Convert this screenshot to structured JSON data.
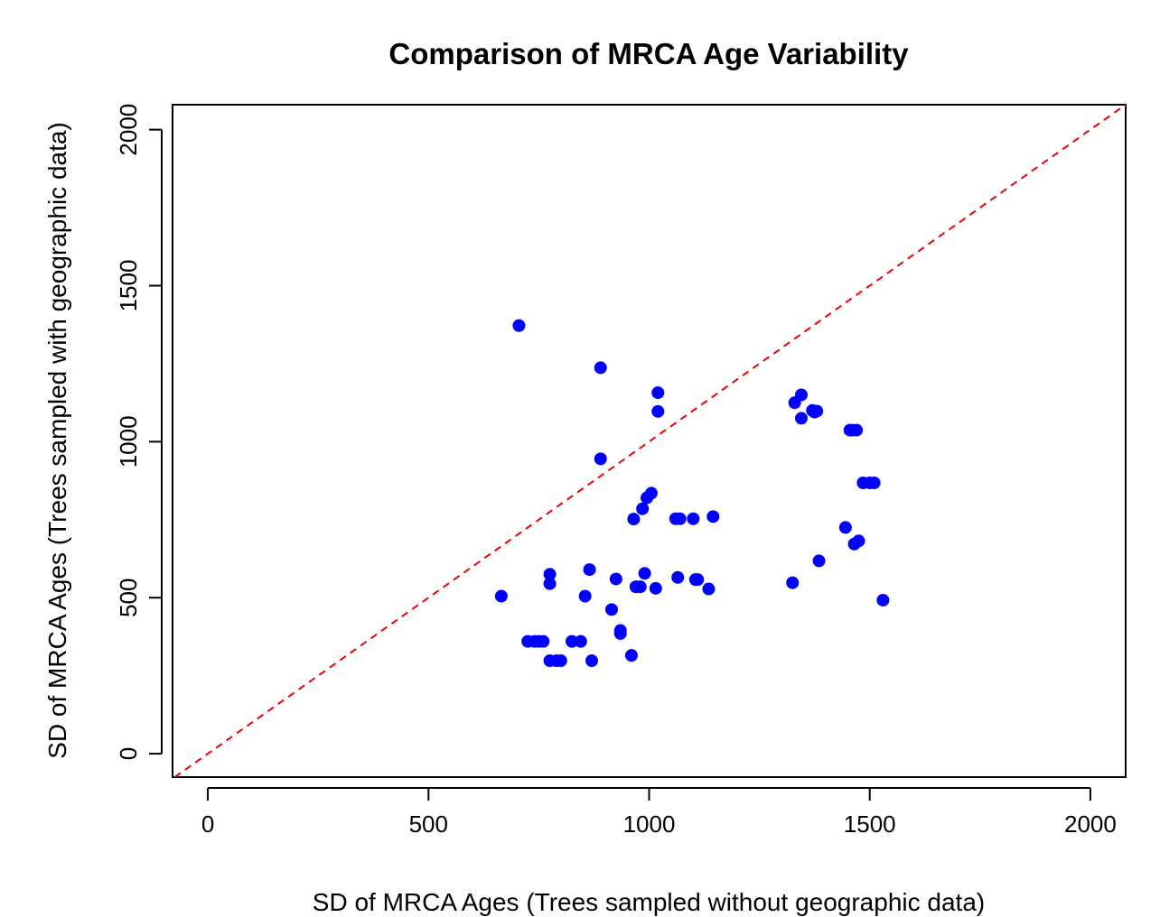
{
  "chart_data": {
    "type": "scatter",
    "title": "Comparison of MRCA Age Variability",
    "xlabel": "SD of MRCA Ages (Trees sampled without geographic data)",
    "ylabel": "SD of MRCA Ages (Trees sampled with geographic data)",
    "xlim": [
      -80,
      2080
    ],
    "ylim": [
      -75,
      2080
    ],
    "xticks": [
      0,
      500,
      1000,
      1500,
      2000
    ],
    "yticks": [
      0,
      500,
      1000,
      1500,
      2000
    ],
    "xtick_labels": [
      "0",
      "500",
      "1000",
      "1500",
      "2000"
    ],
    "ytick_labels": [
      "0",
      "500",
      "1000",
      "1500",
      "2000"
    ],
    "reference_line": {
      "type": "y=x",
      "style": "dashed",
      "color": "#ee0000"
    },
    "point_color": "#0000ff",
    "grid": false,
    "legend": "none",
    "series": [
      {
        "points": [
          [
            665,
            505
          ],
          [
            705,
            1372
          ],
          [
            725,
            360
          ],
          [
            740,
            360
          ],
          [
            750,
            360
          ],
          [
            760,
            360
          ],
          [
            775,
            575
          ],
          [
            775,
            545
          ],
          [
            775,
            298
          ],
          [
            790,
            298
          ],
          [
            800,
            298
          ],
          [
            825,
            360
          ],
          [
            845,
            360
          ],
          [
            855,
            505
          ],
          [
            865,
            590
          ],
          [
            870,
            298
          ],
          [
            890,
            1237
          ],
          [
            890,
            945
          ],
          [
            915,
            462
          ],
          [
            925,
            560
          ],
          [
            935,
            395
          ],
          [
            935,
            385
          ],
          [
            960,
            315
          ],
          [
            965,
            752
          ],
          [
            970,
            535
          ],
          [
            980,
            535
          ],
          [
            985,
            785
          ],
          [
            990,
            578
          ],
          [
            995,
            820
          ],
          [
            1005,
            835
          ],
          [
            1015,
            530
          ],
          [
            1020,
            1157
          ],
          [
            1020,
            1097
          ],
          [
            1060,
            753
          ],
          [
            1065,
            565
          ],
          [
            1070,
            753
          ],
          [
            1100,
            753
          ],
          [
            1105,
            558
          ],
          [
            1110,
            558
          ],
          [
            1135,
            528
          ],
          [
            1145,
            760
          ],
          [
            1325,
            548
          ],
          [
            1330,
            1125
          ],
          [
            1345,
            1150
          ],
          [
            1345,
            1075
          ],
          [
            1370,
            1100
          ],
          [
            1375,
            1095
          ],
          [
            1380,
            1098
          ],
          [
            1385,
            618
          ],
          [
            1445,
            725
          ],
          [
            1455,
            1037
          ],
          [
            1460,
            1037
          ],
          [
            1465,
            672
          ],
          [
            1470,
            1037
          ],
          [
            1475,
            682
          ],
          [
            1485,
            868
          ],
          [
            1500,
            868
          ],
          [
            1510,
            868
          ],
          [
            1530,
            492
          ]
        ]
      }
    ]
  }
}
